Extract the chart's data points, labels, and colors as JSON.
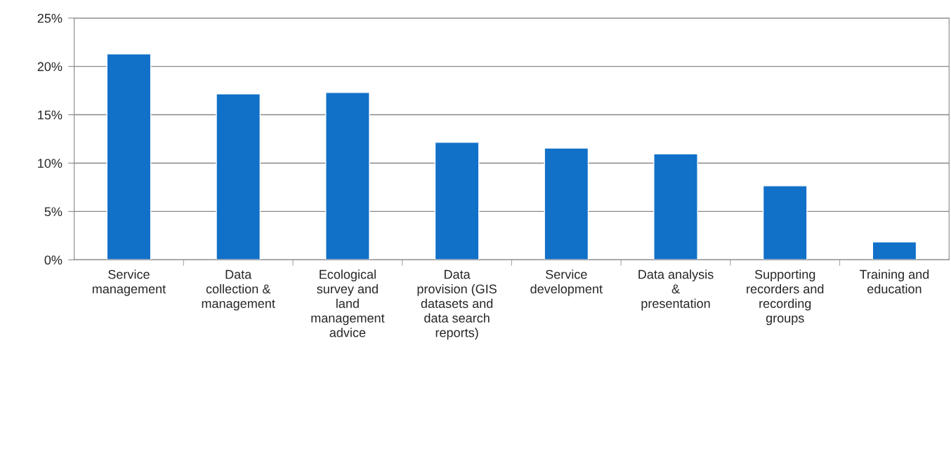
{
  "chart_data": {
    "type": "bar",
    "categories": [
      "Service\nmanagement",
      "Data\ncollection &\nmanagement",
      "Ecological\nsurvey and\nland\nmanagement\nadvice",
      "Data\nprovision (GIS\ndatasets and\ndata search\nreports)",
      "Service\ndevelopment",
      "Data analysis\n&\npresentation",
      "Supporting\nrecorders and\nrecording\ngroups",
      "Training and\neducation"
    ],
    "values": [
      21.3,
      17.15,
      17.3,
      12.15,
      11.55,
      10.95,
      7.65,
      1.85
    ],
    "color": "#1170c8",
    "ylim": [
      0,
      25
    ],
    "yticks": [
      {
        "value": 0,
        "label": "0%"
      },
      {
        "value": 5,
        "label": "5%"
      },
      {
        "value": 10,
        "label": "10%"
      },
      {
        "value": 15,
        "label": "15%"
      },
      {
        "value": 20,
        "label": "20%"
      },
      {
        "value": 25,
        "label": "25%"
      }
    ],
    "grid": "y"
  }
}
